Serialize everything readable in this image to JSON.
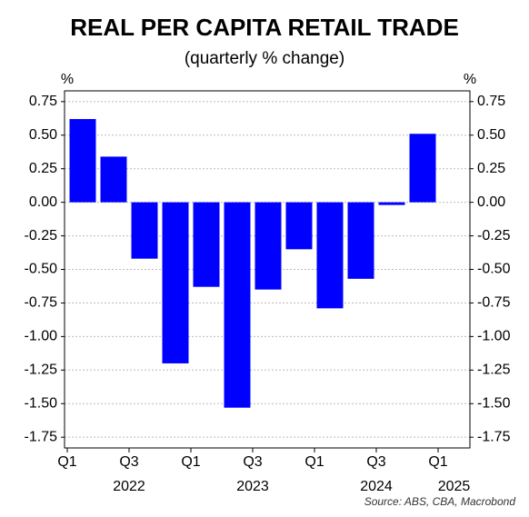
{
  "chart_data": {
    "type": "bar",
    "title": "REAL PER CAPITA RETAIL TRADE",
    "subtitle": "(quarterly % change)",
    "y_unit": "%",
    "y2_unit": "%",
    "source": "Source: ABS, CBA, Macrobond",
    "categories": [
      "Q1",
      null,
      "Q3",
      null,
      "Q1",
      null,
      "Q3",
      null,
      "Q1",
      null,
      "Q3",
      null,
      "Q1"
    ],
    "year_labels": [
      "2022",
      "2023",
      "2024",
      "2025"
    ],
    "values": [
      0.62,
      0.34,
      -0.42,
      -1.2,
      -0.63,
      -1.53,
      -0.65,
      -0.35,
      -0.79,
      -0.57,
      -0.02,
      0.51,
      null
    ],
    "color": "#0000ff",
    "ylim": [
      -1.83,
      0.83
    ],
    "yticks": [
      0.75,
      {
        "value": 0.5,
        "label": "0.50"
      },
      0.25,
      {
        "value": 0,
        "label": "0.00"
      },
      -0.25,
      {
        "value": -0.5,
        "label": "-0.50"
      },
      -0.75,
      {
        "value": -1,
        "label": "-1.00"
      },
      -1.25,
      {
        "value": -1.5,
        "label": "-1.50"
      },
      -1.75
    ],
    "grid": true
  }
}
